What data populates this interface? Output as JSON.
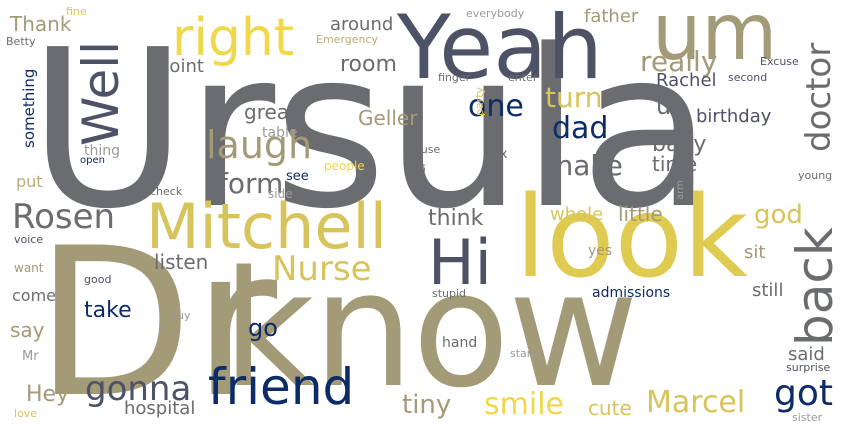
{
  "palette": {
    "gray": "#6b6c70",
    "khaki": "#a39a78",
    "yellow": "#f0d84a",
    "gold": "#d8c45c",
    "navy": "#0d2b66",
    "slate": "#4e5266",
    "lightgray": "#9a9a9a",
    "sand": "#b9ad7a"
  },
  "words": {
    "ursula": "Ursula",
    "dr": "Dr",
    "know": "know",
    "look": "look",
    "yeah": "Yeah",
    "um": "um",
    "mitchell": "Mitchell",
    "friend": "friend",
    "hi": "Hi",
    "right": "right",
    "well": "Well",
    "back": "back",
    "laugh": "laugh",
    "doctor": "doctor",
    "rosen": "Rosen",
    "nurse": "Nurse",
    "gonna": "gonna",
    "smile": "smile",
    "marcel": "Marcel",
    "got": "got",
    "one": "one",
    "dad": "dad",
    "turn": "turn",
    "make": "make",
    "form": "form",
    "really": "really",
    "uh": "uh",
    "god": "god",
    "tiny": "tiny",
    "take": "take",
    "go": "go",
    "hey": "Hey",
    "room": "room",
    "baby": "baby",
    "think": "think",
    "listen": "listen",
    "little": "little",
    "cute": "cute",
    "thank": "Thank",
    "great": "great",
    "geller": "Geller",
    "birthday": "birthday",
    "time": "time",
    "rachel": "Rachel",
    "father": "father",
    "around": "around",
    "point": "point",
    "say": "say",
    "hospital": "hospital",
    "said": "said",
    "still": "still",
    "sit": "sit",
    "whole": "whole",
    "come": "come",
    "something": "something",
    "admissions": "admissions",
    "put": "put",
    "want": "want",
    "box": "box",
    "table": "table",
    "thing": "thing",
    "hand": "hand",
    "people": "people",
    "see": "see",
    "side": "side",
    "feel": "feel",
    "yes": "yes",
    "sister": "sister",
    "surprise": "surprise",
    "young": "young",
    "check": "check",
    "fine": "fine",
    "betty": "Betty",
    "emergency": "Emergency",
    "everybody": "everybody",
    "finger": "finger",
    "enter": "enter",
    "party": "party",
    "excuse": "Excuse",
    "second": "second",
    "cause": "cause",
    "open": "open",
    "arm": "arm",
    "voice": "voice",
    "good": "good",
    "guy": "guy",
    "stupid": "stupid",
    "stand": "stand",
    "mr": "Mr",
    "love": "love"
  }
}
